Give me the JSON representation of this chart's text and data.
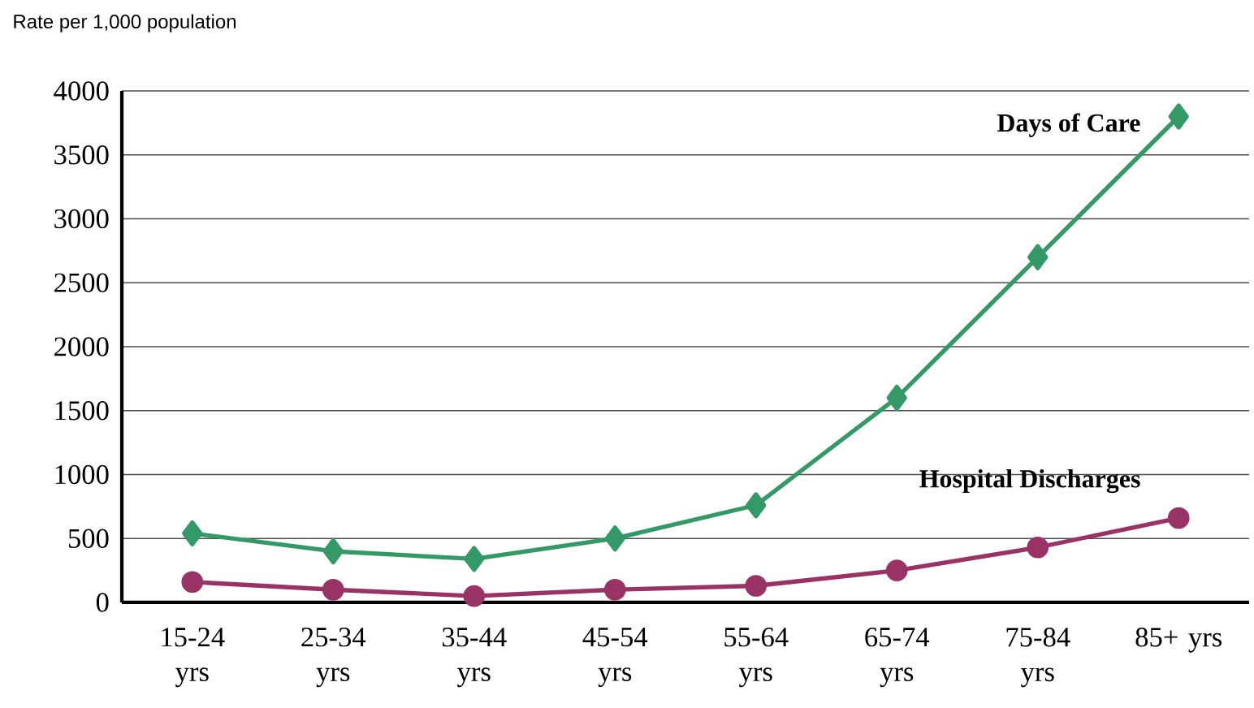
{
  "chart_data": {
    "type": "line",
    "ylabel": "Rate per 1,000 population",
    "categories": [
      "15-24 yrs",
      "25-34 yrs",
      "35-44 yrs",
      "45-54 yrs",
      "55-64 yrs",
      "65-74 yrs",
      "75-84 yrs",
      "85+ yrs"
    ],
    "series": [
      {
        "name": "Days of Care",
        "color": "#339966",
        "marker": "diamond",
        "values": [
          540,
          400,
          340,
          500,
          760,
          1600,
          2700,
          3800
        ]
      },
      {
        "name": "Hospital Discharges",
        "color": "#993366",
        "marker": "circle",
        "values": [
          160,
          100,
          50,
          100,
          130,
          250,
          430,
          660
        ]
      }
    ],
    "ylim": [
      0,
      4000
    ],
    "yticks": [
      0,
      500,
      1000,
      1500,
      2000,
      2500,
      3000,
      3500,
      4000
    ],
    "grid": "y"
  }
}
